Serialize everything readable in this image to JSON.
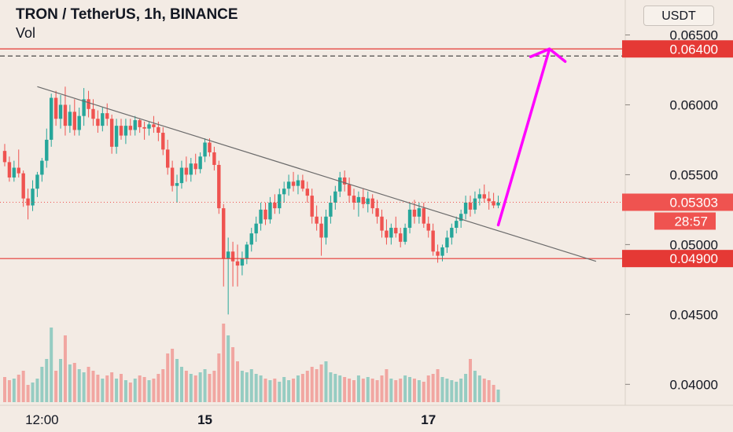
{
  "header": {
    "title": "TRON / TetherUS, 1h, BINANCE",
    "indicator": "Vol",
    "unit_button": "USDT"
  },
  "colors": {
    "background": "#f3ebe4",
    "up": "#26a69a",
    "down": "#ef5350",
    "level_line": "#e53935",
    "trendline": "#6b6b6b",
    "projection_arrow": "#ff00ff",
    "axis_text": "#131722"
  },
  "chart_data": {
    "type": "candlestick",
    "symbol": "TRON / TetherUS",
    "timeframe": "1h",
    "exchange": "BINANCE",
    "y_unit": "USDT",
    "ylim": [
      0.0385,
      0.0675
    ],
    "y_ticks": [
      "0.06500",
      "0.06000",
      "0.05500",
      "0.05000",
      "0.04500",
      "0.04000"
    ],
    "x_ticks": [
      "12:00",
      "15",
      "17"
    ],
    "levels": [
      {
        "label": "0.06400",
        "value": 0.064,
        "style": "solid"
      },
      {
        "label": "0.04900",
        "value": 0.049,
        "style": "solid"
      }
    ],
    "current_price": {
      "label": "0.05303",
      "value": 0.05303,
      "countdown": "28:57"
    },
    "trendline": {
      "from_index": 7,
      "from_value": 0.0613,
      "to_index": 127,
      "to_value": 0.0488
    },
    "projection": {
      "from_index": 106,
      "from_value": 0.0514,
      "to_index": 117,
      "to_value": 0.064
    },
    "candles": [
      [
        0.0567,
        0.0572,
        0.0556,
        0.0559
      ],
      [
        0.0559,
        0.0563,
        0.0545,
        0.0548
      ],
      [
        0.0548,
        0.056,
        0.0545,
        0.0555
      ],
      [
        0.0555,
        0.0568,
        0.0548,
        0.0551
      ],
      [
        0.0551,
        0.0553,
        0.0527,
        0.0533
      ],
      [
        0.0533,
        0.054,
        0.0518,
        0.0528
      ],
      [
        0.0528,
        0.0546,
        0.0524,
        0.054
      ],
      [
        0.054,
        0.0552,
        0.0534,
        0.055
      ],
      [
        0.055,
        0.0562,
        0.0545,
        0.056
      ],
      [
        0.056,
        0.0583,
        0.0555,
        0.0575
      ],
      [
        0.0575,
        0.0608,
        0.057,
        0.0605
      ],
      [
        0.0605,
        0.061,
        0.0585,
        0.059
      ],
      [
        0.059,
        0.0607,
        0.0583,
        0.06
      ],
      [
        0.06,
        0.0613,
        0.0578,
        0.0585
      ],
      [
        0.0585,
        0.06,
        0.058,
        0.0595
      ],
      [
        0.0595,
        0.0604,
        0.0578,
        0.0582
      ],
      [
        0.0582,
        0.0598,
        0.0578,
        0.0592
      ],
      [
        0.0592,
        0.0612,
        0.0585,
        0.0604
      ],
      [
        0.0604,
        0.061,
        0.0591,
        0.0597
      ],
      [
        0.0597,
        0.0604,
        0.0585,
        0.059
      ],
      [
        0.059,
        0.0596,
        0.058,
        0.0585
      ],
      [
        0.0585,
        0.0598,
        0.0581,
        0.0594
      ],
      [
        0.0594,
        0.0601,
        0.0585,
        0.059
      ],
      [
        0.059,
        0.0593,
        0.0565,
        0.057
      ],
      [
        0.057,
        0.059,
        0.0565,
        0.0585
      ],
      [
        0.0585,
        0.059,
        0.0575,
        0.0578
      ],
      [
        0.0578,
        0.059,
        0.0572,
        0.0585
      ],
      [
        0.0585,
        0.059,
        0.0578,
        0.0582
      ],
      [
        0.0582,
        0.0592,
        0.0578,
        0.0589
      ],
      [
        0.0589,
        0.059,
        0.058,
        0.0584
      ],
      [
        0.0584,
        0.0588,
        0.0575,
        0.0583
      ],
      [
        0.0583,
        0.0588,
        0.0578,
        0.0586
      ],
      [
        0.0586,
        0.0592,
        0.058,
        0.0584
      ],
      [
        0.0584,
        0.0588,
        0.0574,
        0.058
      ],
      [
        0.058,
        0.0584,
        0.0564,
        0.0568
      ],
      [
        0.0568,
        0.0575,
        0.055,
        0.0555
      ],
      [
        0.0555,
        0.056,
        0.0538,
        0.0542
      ],
      [
        0.0542,
        0.055,
        0.053,
        0.0544
      ],
      [
        0.0544,
        0.056,
        0.054,
        0.0555
      ],
      [
        0.0555,
        0.0563,
        0.0545,
        0.055
      ],
      [
        0.055,
        0.0562,
        0.0545,
        0.0558
      ],
      [
        0.0558,
        0.0565,
        0.055,
        0.0554
      ],
      [
        0.0554,
        0.0566,
        0.0551,
        0.0563
      ],
      [
        0.0563,
        0.0576,
        0.0559,
        0.0573
      ],
      [
        0.0573,
        0.0576,
        0.0563,
        0.0566
      ],
      [
        0.0566,
        0.057,
        0.0553,
        0.0557
      ],
      [
        0.0557,
        0.056,
        0.0522,
        0.0526
      ],
      [
        0.0526,
        0.0529,
        0.047,
        0.049
      ],
      [
        0.049,
        0.0505,
        0.045,
        0.0495
      ],
      [
        0.0495,
        0.0502,
        0.047,
        0.0488
      ],
      [
        0.0488,
        0.05,
        0.047,
        0.0485
      ],
      [
        0.0485,
        0.0495,
        0.0478,
        0.049
      ],
      [
        0.049,
        0.0502,
        0.0486,
        0.05
      ],
      [
        0.05,
        0.0512,
        0.0495,
        0.0508
      ],
      [
        0.0508,
        0.052,
        0.0502,
        0.0515
      ],
      [
        0.0515,
        0.053,
        0.051,
        0.0525
      ],
      [
        0.0525,
        0.053,
        0.0514,
        0.0518
      ],
      [
        0.0518,
        0.0534,
        0.0515,
        0.053
      ],
      [
        0.053,
        0.0536,
        0.0522,
        0.0526
      ],
      [
        0.0526,
        0.054,
        0.0522,
        0.0536
      ],
      [
        0.0536,
        0.0545,
        0.053,
        0.054
      ],
      [
        0.054,
        0.055,
        0.0535,
        0.0545
      ],
      [
        0.0545,
        0.0552,
        0.0538,
        0.0542
      ],
      [
        0.0542,
        0.055,
        0.0536,
        0.0546
      ],
      [
        0.0546,
        0.055,
        0.0538,
        0.054
      ],
      [
        0.054,
        0.0545,
        0.053,
        0.0535
      ],
      [
        0.0535,
        0.054,
        0.0515,
        0.052
      ],
      [
        0.052,
        0.0528,
        0.051,
        0.0515
      ],
      [
        0.0515,
        0.052,
        0.0492,
        0.0505
      ],
      [
        0.0505,
        0.0525,
        0.05,
        0.052
      ],
      [
        0.052,
        0.0535,
        0.0515,
        0.053
      ],
      [
        0.053,
        0.0542,
        0.0525,
        0.0538
      ],
      [
        0.0538,
        0.0552,
        0.0534,
        0.0548
      ],
      [
        0.0548,
        0.0553,
        0.0538,
        0.0543
      ],
      [
        0.0543,
        0.0548,
        0.053,
        0.0535
      ],
      [
        0.0535,
        0.054,
        0.0525,
        0.053
      ],
      [
        0.053,
        0.0538,
        0.052,
        0.0534
      ],
      [
        0.0534,
        0.054,
        0.0526,
        0.0529
      ],
      [
        0.0529,
        0.0538,
        0.0523,
        0.0533
      ],
      [
        0.0533,
        0.0536,
        0.0522,
        0.0526
      ],
      [
        0.0526,
        0.0532,
        0.0515,
        0.052
      ],
      [
        0.052,
        0.0525,
        0.0505,
        0.051
      ],
      [
        0.051,
        0.0518,
        0.05,
        0.0505
      ],
      [
        0.0505,
        0.0515,
        0.05,
        0.0512
      ],
      [
        0.0512,
        0.052,
        0.0505,
        0.0508
      ],
      [
        0.0508,
        0.0512,
        0.0498,
        0.0502
      ],
      [
        0.0502,
        0.0515,
        0.05,
        0.0512
      ],
      [
        0.0512,
        0.053,
        0.0508,
        0.0525
      ],
      [
        0.0525,
        0.0532,
        0.0515,
        0.052
      ],
      [
        0.052,
        0.053,
        0.0515,
        0.0526
      ],
      [
        0.0526,
        0.053,
        0.0512,
        0.0515
      ],
      [
        0.0515,
        0.052,
        0.0505,
        0.051
      ],
      [
        0.051,
        0.0515,
        0.0492,
        0.0495
      ],
      [
        0.0495,
        0.05,
        0.0487,
        0.0492
      ],
      [
        0.0492,
        0.05,
        0.0488,
        0.0498
      ],
      [
        0.0498,
        0.051,
        0.0494,
        0.0505
      ],
      [
        0.0505,
        0.0515,
        0.05,
        0.0512
      ],
      [
        0.0512,
        0.052,
        0.0508,
        0.0517
      ],
      [
        0.0517,
        0.0525,
        0.0512,
        0.0522
      ],
      [
        0.0522,
        0.0535,
        0.0518,
        0.053
      ],
      [
        0.053,
        0.0535,
        0.052,
        0.0525
      ],
      [
        0.0525,
        0.0538,
        0.0522,
        0.0533
      ],
      [
        0.0533,
        0.054,
        0.0528,
        0.0536
      ],
      [
        0.0536,
        0.0543,
        0.053,
        0.0533
      ],
      [
        0.0533,
        0.0538,
        0.0525,
        0.0531
      ],
      [
        0.0531,
        0.0537,
        0.0526,
        0.0528
      ],
      [
        0.0528,
        0.0535,
        0.0526,
        0.053
      ]
    ],
    "volumes": [
      0.32,
      0.28,
      0.3,
      0.35,
      0.4,
      0.22,
      0.25,
      0.3,
      0.45,
      0.55,
      0.95,
      0.4,
      0.55,
      0.85,
      0.48,
      0.5,
      0.42,
      0.38,
      0.45,
      0.4,
      0.35,
      0.3,
      0.34,
      0.38,
      0.3,
      0.36,
      0.28,
      0.25,
      0.3,
      0.34,
      0.32,
      0.28,
      0.3,
      0.36,
      0.42,
      0.62,
      0.68,
      0.55,
      0.45,
      0.4,
      0.36,
      0.34,
      0.38,
      0.42,
      0.36,
      0.4,
      0.62,
      1.0,
      0.85,
      0.7,
      0.52,
      0.4,
      0.38,
      0.42,
      0.36,
      0.34,
      0.3,
      0.28,
      0.3,
      0.26,
      0.32,
      0.28,
      0.3,
      0.34,
      0.36,
      0.4,
      0.45,
      0.42,
      0.48,
      0.52,
      0.38,
      0.36,
      0.34,
      0.32,
      0.3,
      0.28,
      0.34,
      0.3,
      0.32,
      0.3,
      0.28,
      0.34,
      0.42,
      0.3,
      0.28,
      0.3,
      0.34,
      0.32,
      0.3,
      0.28,
      0.26,
      0.34,
      0.36,
      0.42,
      0.32,
      0.3,
      0.28,
      0.26,
      0.3,
      0.36,
      0.55,
      0.4,
      0.34,
      0.3,
      0.28,
      0.22,
      0.16
    ]
  }
}
